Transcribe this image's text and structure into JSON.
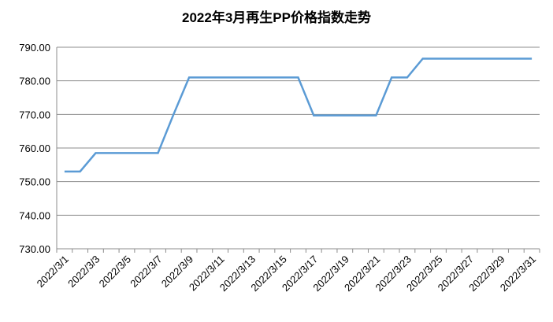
{
  "chart_data": {
    "type": "line",
    "title": "2022年3月再生PP价格指数走势",
    "categories": [
      "2022/3/1",
      null,
      "2022/3/3",
      null,
      "2022/3/5",
      null,
      "2022/3/7",
      null,
      "2022/3/9",
      null,
      "2022/3/11",
      null,
      "2022/3/13",
      null,
      "2022/3/15",
      null,
      "2022/3/17",
      null,
      "2022/3/19",
      null,
      "2022/3/21",
      null,
      "2022/3/23",
      null,
      "2022/3/25",
      null,
      "2022/3/27",
      null,
      "2022/3/29",
      null,
      "2022/3/31"
    ],
    "series": [
      {
        "name": "再生PP价格指数",
        "color": "#5b9bd5",
        "values": [
          753,
          753,
          758.5,
          758.5,
          758.5,
          758.5,
          758.5,
          770,
          781,
          781,
          781,
          781,
          781,
          781,
          781,
          781,
          769.7,
          769.7,
          769.7,
          769.7,
          769.7,
          781,
          781,
          786.6,
          786.6,
          786.6,
          786.6,
          786.6,
          786.6,
          786.6,
          786.6
        ]
      }
    ],
    "ylim": [
      730,
      790
    ],
    "yticks": [
      {
        "value": 730,
        "label": "730.00"
      },
      {
        "value": 740,
        "label": "740.00"
      },
      {
        "value": 750,
        "label": "750.00"
      },
      {
        "value": 760,
        "label": "760.00"
      },
      {
        "value": 770,
        "label": "770.00"
      },
      {
        "value": 780,
        "label": "780.00"
      },
      {
        "value": 790,
        "label": "790.00"
      }
    ],
    "grid": true
  }
}
